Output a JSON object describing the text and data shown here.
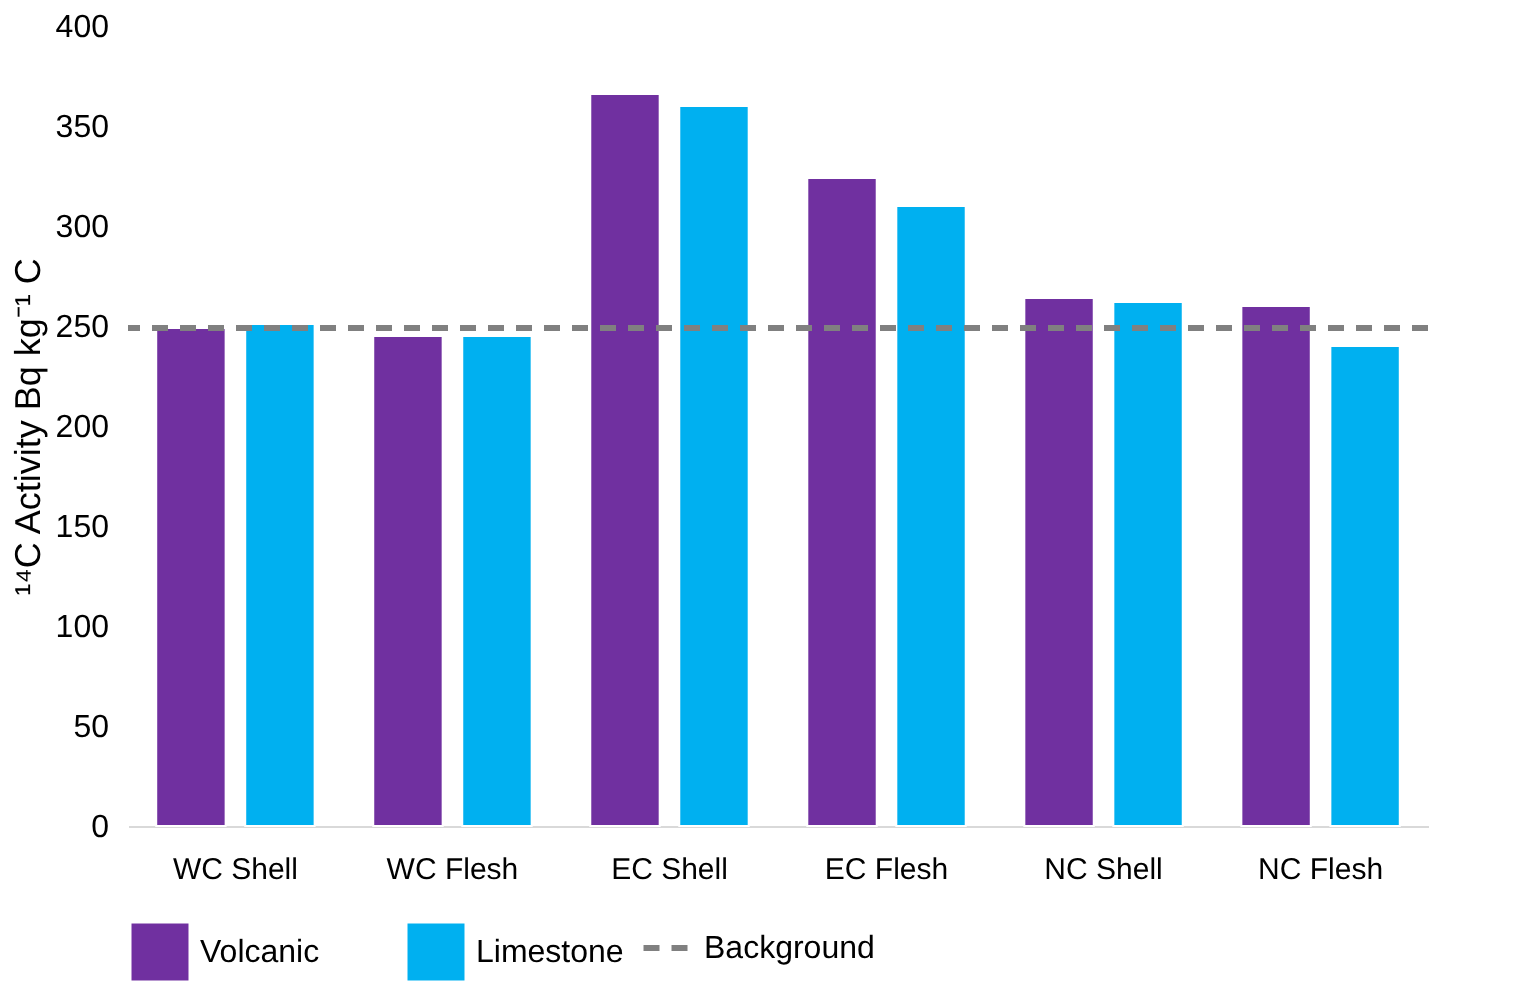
{
  "chart_data": {
    "type": "bar",
    "ylabel": "¹⁴C Activity Bq kg⁻¹ C",
    "categories": [
      "WC Shell",
      "WC Flesh",
      "EC Shell",
      "EC Flesh",
      "NC Shell",
      "NC Flesh"
    ],
    "series": [
      {
        "name": "Volcanic",
        "color": "#7030a0",
        "values": [
          249,
          245,
          366,
          324,
          264,
          260
        ]
      },
      {
        "name": "Limestone",
        "color": "#00b0f0",
        "values": [
          251,
          245,
          360,
          310,
          262,
          240
        ]
      }
    ],
    "ylim": [
      0,
      400
    ],
    "yticks": [
      0,
      50,
      100,
      150,
      200,
      250,
      300,
      350,
      400
    ],
    "grid": false,
    "legend": "bottom",
    "ref_lines": [
      {
        "axis": "y",
        "value": 249,
        "label": "Background",
        "color": "#808080",
        "line_style": "dashed"
      }
    ]
  }
}
